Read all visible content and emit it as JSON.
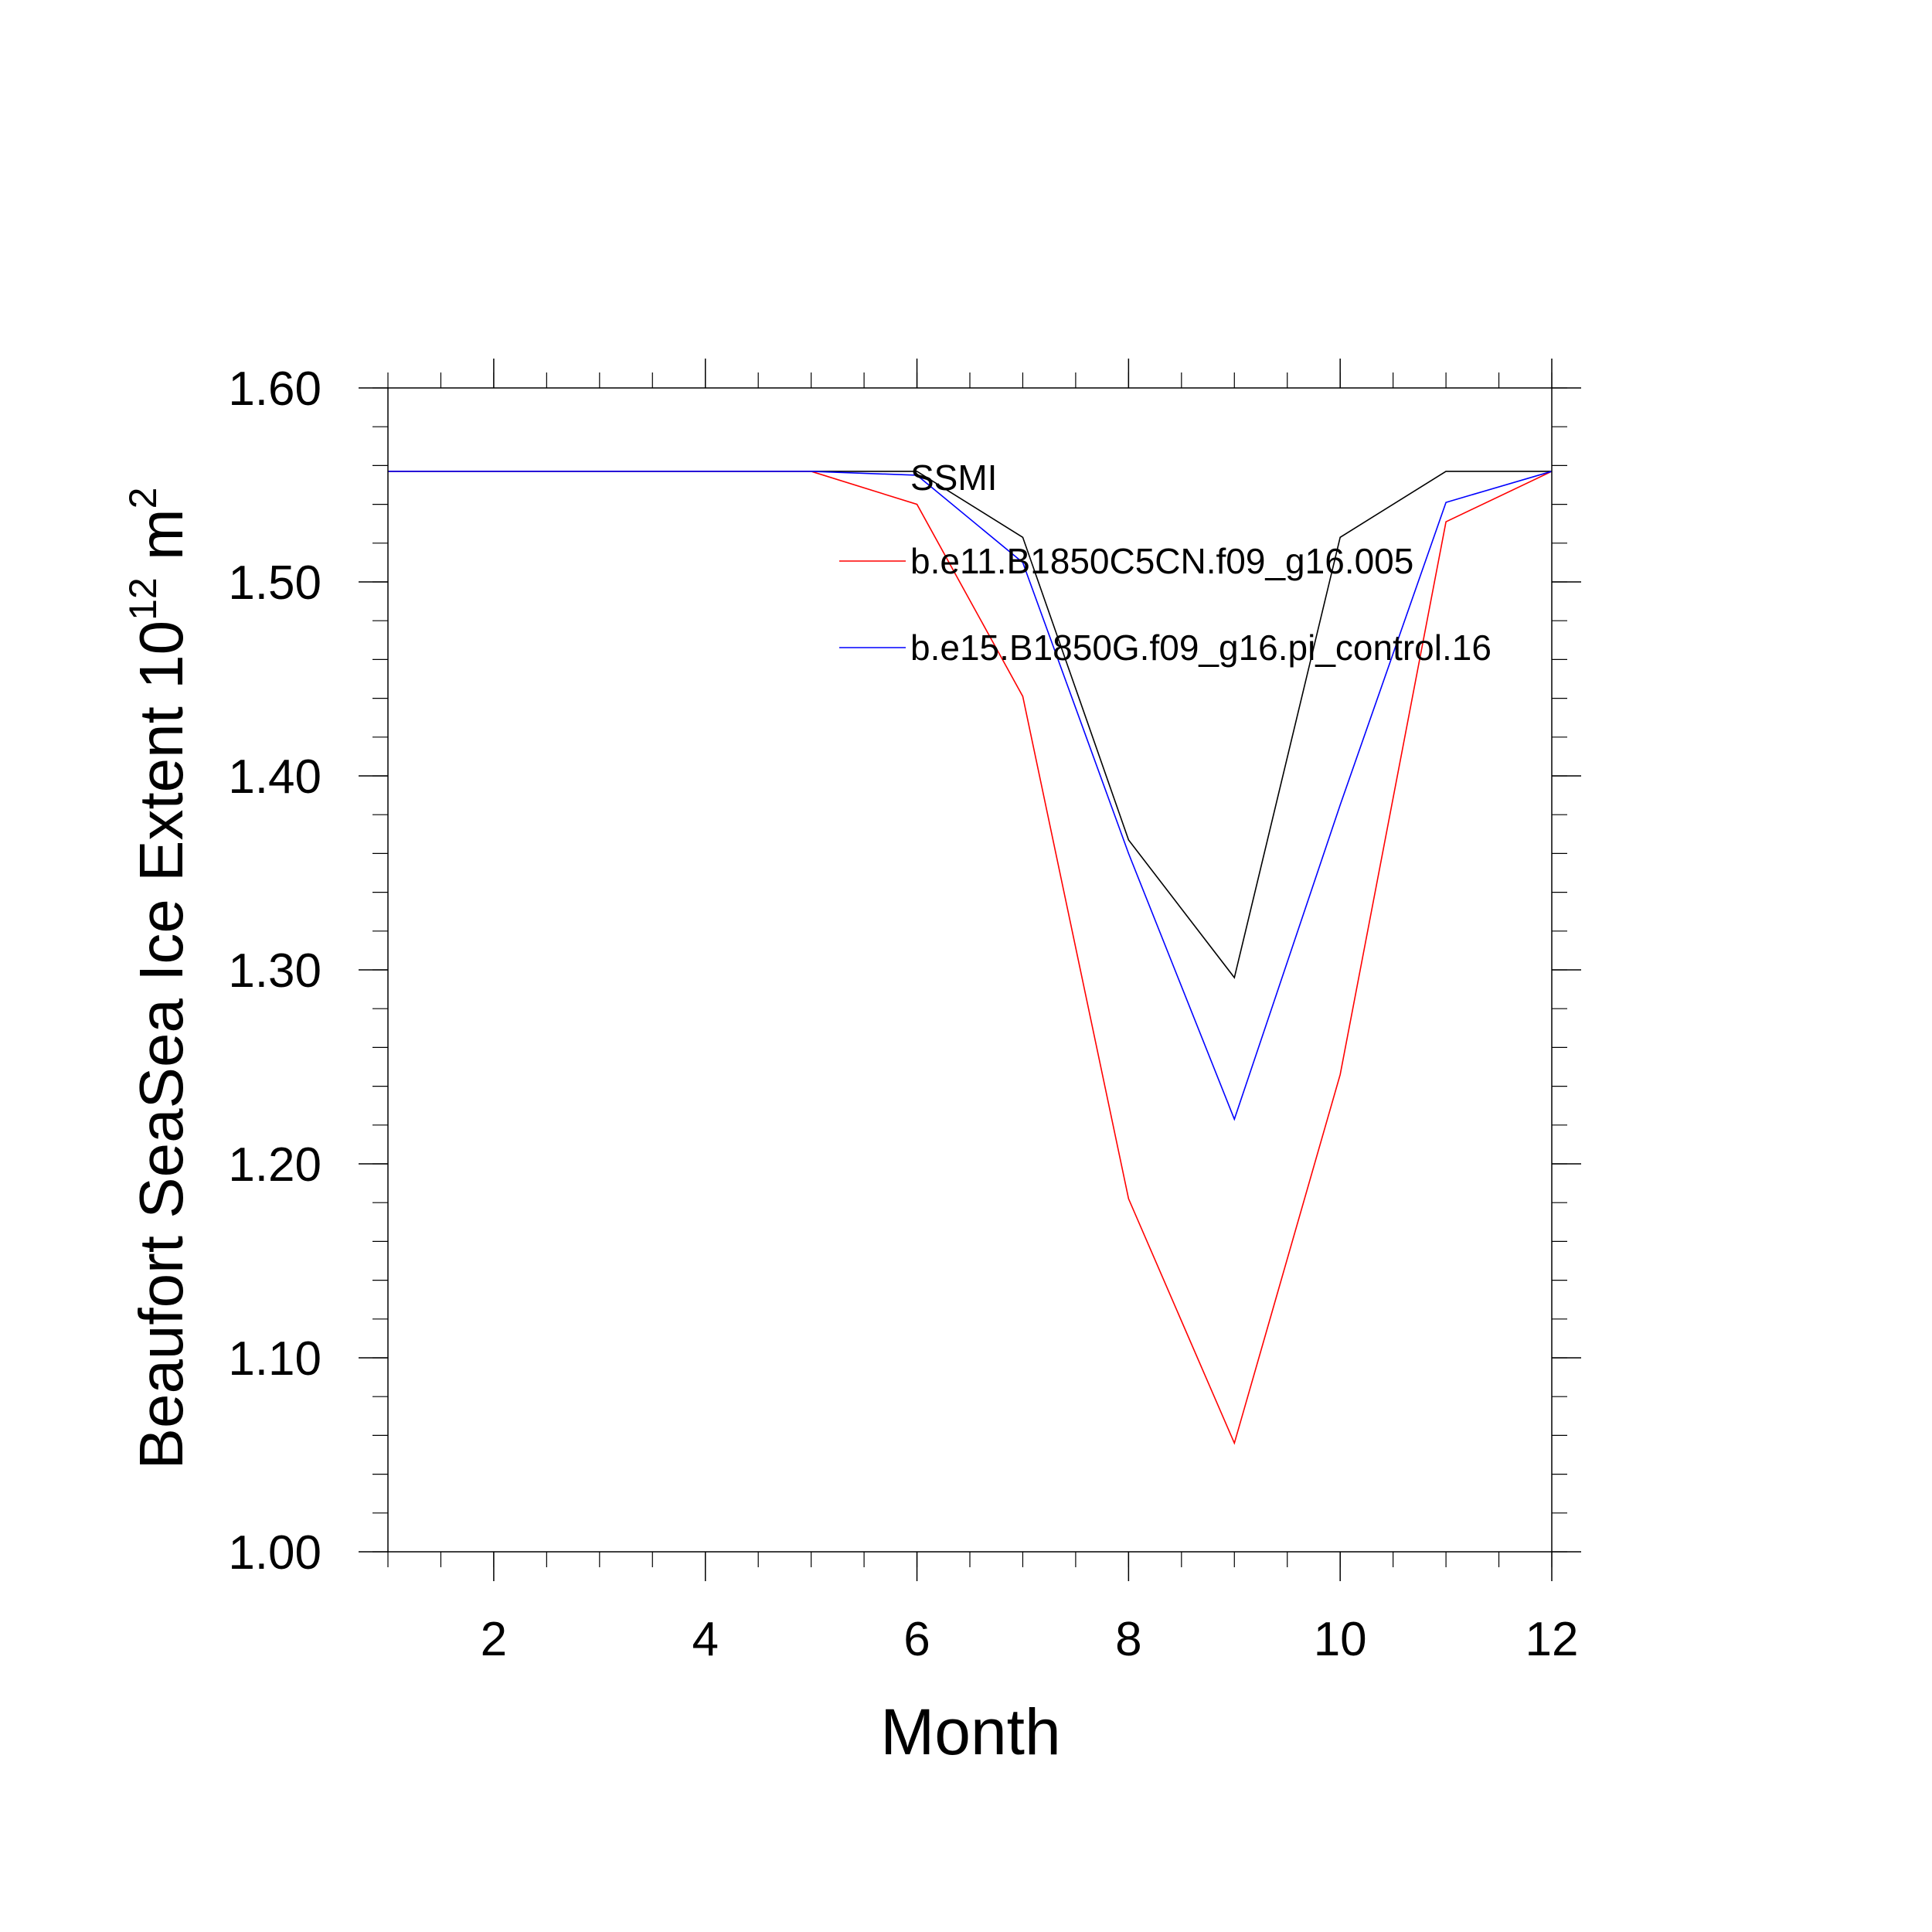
{
  "chart_data": {
    "type": "line",
    "title": "",
    "xlabel": "Month",
    "ylabel": "Beaufort SeaSea Ice Extent 10",
    "ylabel_sup": "12",
    "ylabel_unit": " m",
    "ylabel_unit_sup": "2",
    "xlim": [
      1,
      12
    ],
    "ylim": [
      1.0,
      1.6
    ],
    "x_ticks": [
      2,
      4,
      6,
      8,
      10,
      12
    ],
    "x_tick_labels": [
      "2",
      "4",
      "6",
      "8",
      "10",
      "12"
    ],
    "y_ticks": [
      1.0,
      1.1,
      1.2,
      1.3,
      1.4,
      1.5,
      1.6
    ],
    "y_tick_labels": [
      "1.00",
      "1.10",
      "1.20",
      "1.30",
      "1.40",
      "1.50",
      "1.60"
    ],
    "grid": false,
    "legend_position": "top-right",
    "x": [
      1,
      2,
      3,
      4,
      5,
      6,
      7,
      8,
      9,
      10,
      11,
      12
    ],
    "series": [
      {
        "name": "SSMI",
        "color": "#000000",
        "show_legend_line": false,
        "values": [
          1.557,
          1.557,
          1.557,
          1.557,
          1.557,
          1.557,
          1.523,
          1.367,
          1.296,
          1.523,
          1.557,
          1.557
        ]
      },
      {
        "name": "b.e11.B1850C5CN.f09_g16.005",
        "color": "#ff0000",
        "show_legend_line": true,
        "values": [
          1.557,
          1.557,
          1.557,
          1.557,
          1.557,
          1.54,
          1.441,
          1.182,
          1.056,
          1.246,
          1.531,
          1.557
        ]
      },
      {
        "name": "b.e15.B1850G.f09_g16.pi_control.16",
        "color": "#0000ff",
        "show_legend_line": true,
        "values": [
          1.557,
          1.557,
          1.557,
          1.557,
          1.557,
          1.555,
          1.51,
          1.36,
          1.223,
          1.385,
          1.541,
          1.557
        ]
      }
    ]
  }
}
